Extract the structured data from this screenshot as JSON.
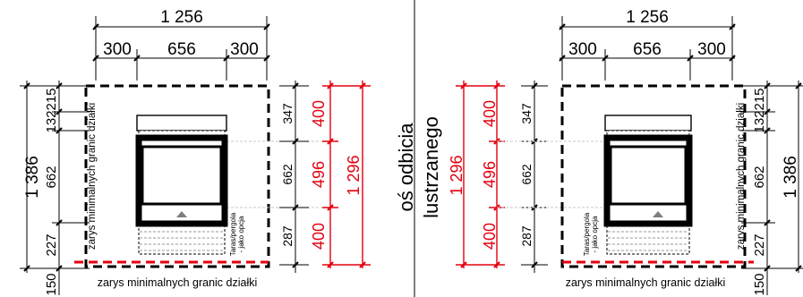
{
  "colors": {
    "line": "#000000",
    "accent": "#e3000f",
    "hatch": "#9a9a9a",
    "guide": "#c8c8c8"
  },
  "mirror_axis": {
    "line1": "oś odbicia",
    "line2": "lustrzanego"
  },
  "plans": [
    {
      "name": "left",
      "top_total": "1 256",
      "top_parts": [
        "300",
        "656",
        "300"
      ],
      "left_total": "1 386",
      "left_parts": [
        "215",
        "132",
        "662",
        "227",
        "150"
      ],
      "house_dims": [
        "347",
        "662",
        "287"
      ],
      "red_parts": [
        "400",
        "496",
        "400"
      ],
      "red_total": "1 296",
      "boundary_label_side": "zarys minimalnych granic działki",
      "boundary_label_bottom": "zarys minimalnych granic działki",
      "terrace_label": [
        "Taras/pergola",
        "- jako opcja"
      ]
    },
    {
      "name": "right",
      "top_total": "1 256",
      "top_parts": [
        "300",
        "656",
        "300"
      ],
      "right_total": "1 386",
      "right_parts": [
        "215",
        "132",
        "662",
        "227",
        "150"
      ],
      "house_dims": [
        "347",
        "662",
        "287"
      ],
      "red_parts": [
        "400",
        "496",
        "400"
      ],
      "red_total": "1 296",
      "boundary_label_side": "zarys minimalnych granic działki",
      "boundary_label_bottom": "zarys minimalnych granic działki",
      "terrace_label": [
        "Taras/pergola",
        "- jako opcja"
      ]
    }
  ]
}
